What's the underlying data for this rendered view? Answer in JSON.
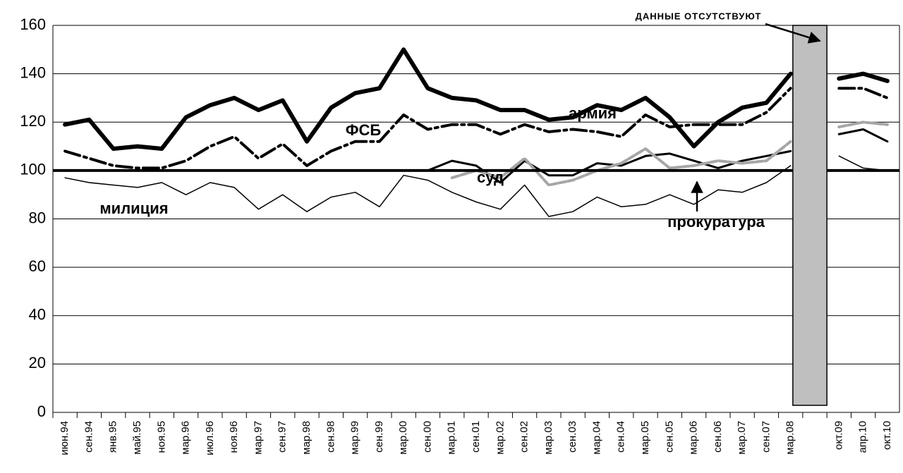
{
  "chart_data": {
    "type": "line",
    "categories": [
      "июн.94",
      "сен.94",
      "янв.95",
      "май.95",
      "ноя.95",
      "мар.96",
      "июл.96",
      "ноя.96",
      "мар.97",
      "сен.97",
      "мар.98",
      "сен.98",
      "мар.99",
      "сен.99",
      "мар.00",
      "сен.00",
      "мар.01",
      "сен.01",
      "мар.02",
      "сен.02",
      "мар.03",
      "сен.03",
      "мар.04",
      "сен.04",
      "мар.05",
      "сен.05",
      "мар.06",
      "сен.06",
      "мар.07",
      "сен.07",
      "мар.08",
      null,
      "окт.09",
      "апр.10",
      "окт.10"
    ],
    "series": [
      {
        "name": "армия",
        "color": "#000000",
        "values": [
          119,
          121,
          109,
          110,
          109,
          122,
          127,
          130,
          125,
          129,
          112,
          126,
          132,
          134,
          150,
          134,
          130,
          129,
          125,
          125,
          121,
          122,
          127,
          125,
          130,
          122,
          110,
          120,
          126,
          128,
          140,
          null,
          138,
          140,
          137
        ]
      },
      {
        "name": "ФСБ",
        "color": "#000000",
        "values": [
          108,
          105,
          102,
          101,
          101,
          104,
          110,
          114,
          105,
          111,
          102,
          108,
          112,
          112,
          123,
          117,
          119,
          119,
          115,
          119,
          116,
          117,
          116,
          114,
          123,
          118,
          119,
          119,
          119,
          124,
          134,
          null,
          134,
          134,
          130
        ]
      },
      {
        "name": "суд",
        "color": "#000000",
        "values": [
          null,
          null,
          null,
          null,
          null,
          null,
          null,
          null,
          null,
          null,
          null,
          null,
          null,
          null,
          null,
          100,
          104,
          102,
          95,
          104,
          98,
          98,
          103,
          102,
          106,
          107,
          104,
          101,
          104,
          106,
          108,
          null,
          115,
          117,
          112
        ]
      },
      {
        "name": "милиция",
        "color": "#000000",
        "values": [
          97,
          95,
          94,
          93,
          95,
          90,
          95,
          93,
          84,
          90,
          83,
          89,
          91,
          85,
          98,
          96,
          91,
          87,
          84,
          94,
          81,
          83,
          89,
          85,
          86,
          90,
          86,
          92,
          91,
          95,
          102,
          null,
          106,
          101,
          100
        ]
      },
      {
        "name": "прокуратура",
        "color": "#a6a6a6",
        "values": [
          null,
          null,
          null,
          null,
          null,
          null,
          null,
          null,
          null,
          null,
          null,
          null,
          null,
          null,
          null,
          null,
          97,
          100,
          97,
          105,
          94,
          96,
          100,
          103,
          109,
          101,
          102,
          104,
          103,
          104,
          112,
          null,
          118,
          120,
          119
        ]
      }
    ],
    "reference_line": 100,
    "annotation": "ДАННЫЕ ОТСУТСТВУЮТ",
    "ylim": [
      0,
      160
    ],
    "yticks": [
      0,
      20,
      40,
      60,
      80,
      100,
      120,
      140,
      160
    ],
    "grid": true
  }
}
